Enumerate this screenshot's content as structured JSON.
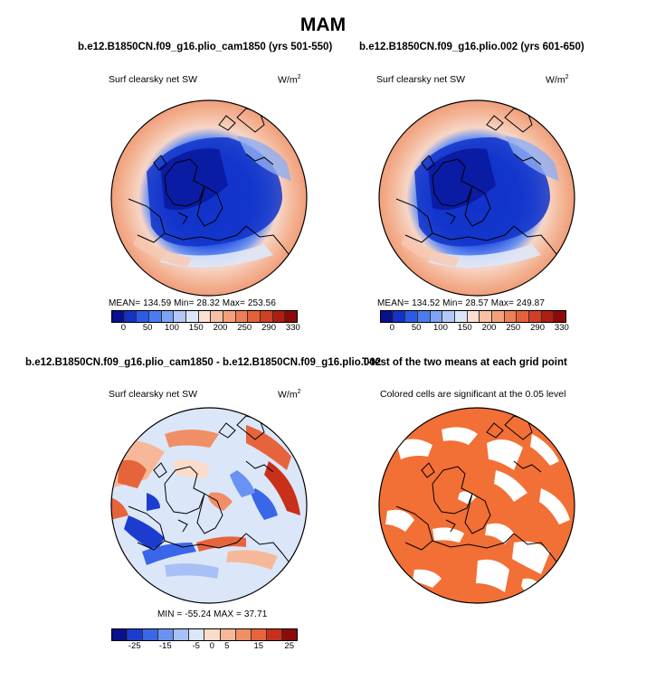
{
  "season": "MAM",
  "panels": {
    "p1": {
      "title": "b.e12.B1850CN.f09_g16.plio_cam1850 (yrs 501-550)",
      "variable": "Surf clearsky net SW",
      "units": "W/m",
      "units_exp": "2",
      "stats": "MEAN=  134.59   Min=    28.32   Max=  253.56"
    },
    "p2": {
      "title": "b.e12.B1850CN.f09_g16.plio.002 (yrs 601-650)",
      "variable": "Surf clearsky net SW",
      "units": "W/m",
      "units_exp": "2",
      "stats": "MEAN=  134.52   Min=    28.57   Max=  249.87"
    },
    "p3": {
      "title": "b.e12.B1850CN.f09_g16.plio_cam1850 - b.e12.B1850CN.f09_g16.plio.002",
      "variable": "Surf clearsky net SW",
      "units": "W/m",
      "units_exp": "2",
      "stats": "MIN =  -55.24  MAX =   37.71"
    },
    "p4": {
      "title": "T-test of the two means at each grid point",
      "subtitle": "Colored cells are significant at the 0.05 level"
    }
  },
  "colorbar_abs": {
    "colors": [
      "#08108c",
      "#1432c8",
      "#2a5ae6",
      "#4a7cf0",
      "#7ea2f4",
      "#b4c8f6",
      "#dce6f8",
      "#fbe0d2",
      "#f8c0a4",
      "#f4a07c",
      "#ee7e56",
      "#e6603a",
      "#d04024",
      "#b01e12",
      "#8c0a08"
    ],
    "tick_labels": [
      "0",
      "50",
      "100",
      "150",
      "200",
      "250",
      "290",
      "330"
    ]
  },
  "colorbar_diff": {
    "colors": [
      "#08108c",
      "#1c3cd0",
      "#3a66e8",
      "#6a92f2",
      "#a8c0f6",
      "#dbe6f8",
      "#fbdcca",
      "#f6b898",
      "#f08e66",
      "#e6643c",
      "#c8301c",
      "#8c0a08"
    ],
    "tick_labels": [
      "-25",
      "-15",
      "-5",
      "0",
      "5",
      "15",
      "25"
    ]
  },
  "colors": {
    "significance_fill": "#f26f36",
    "land_outline": "#000000"
  }
}
